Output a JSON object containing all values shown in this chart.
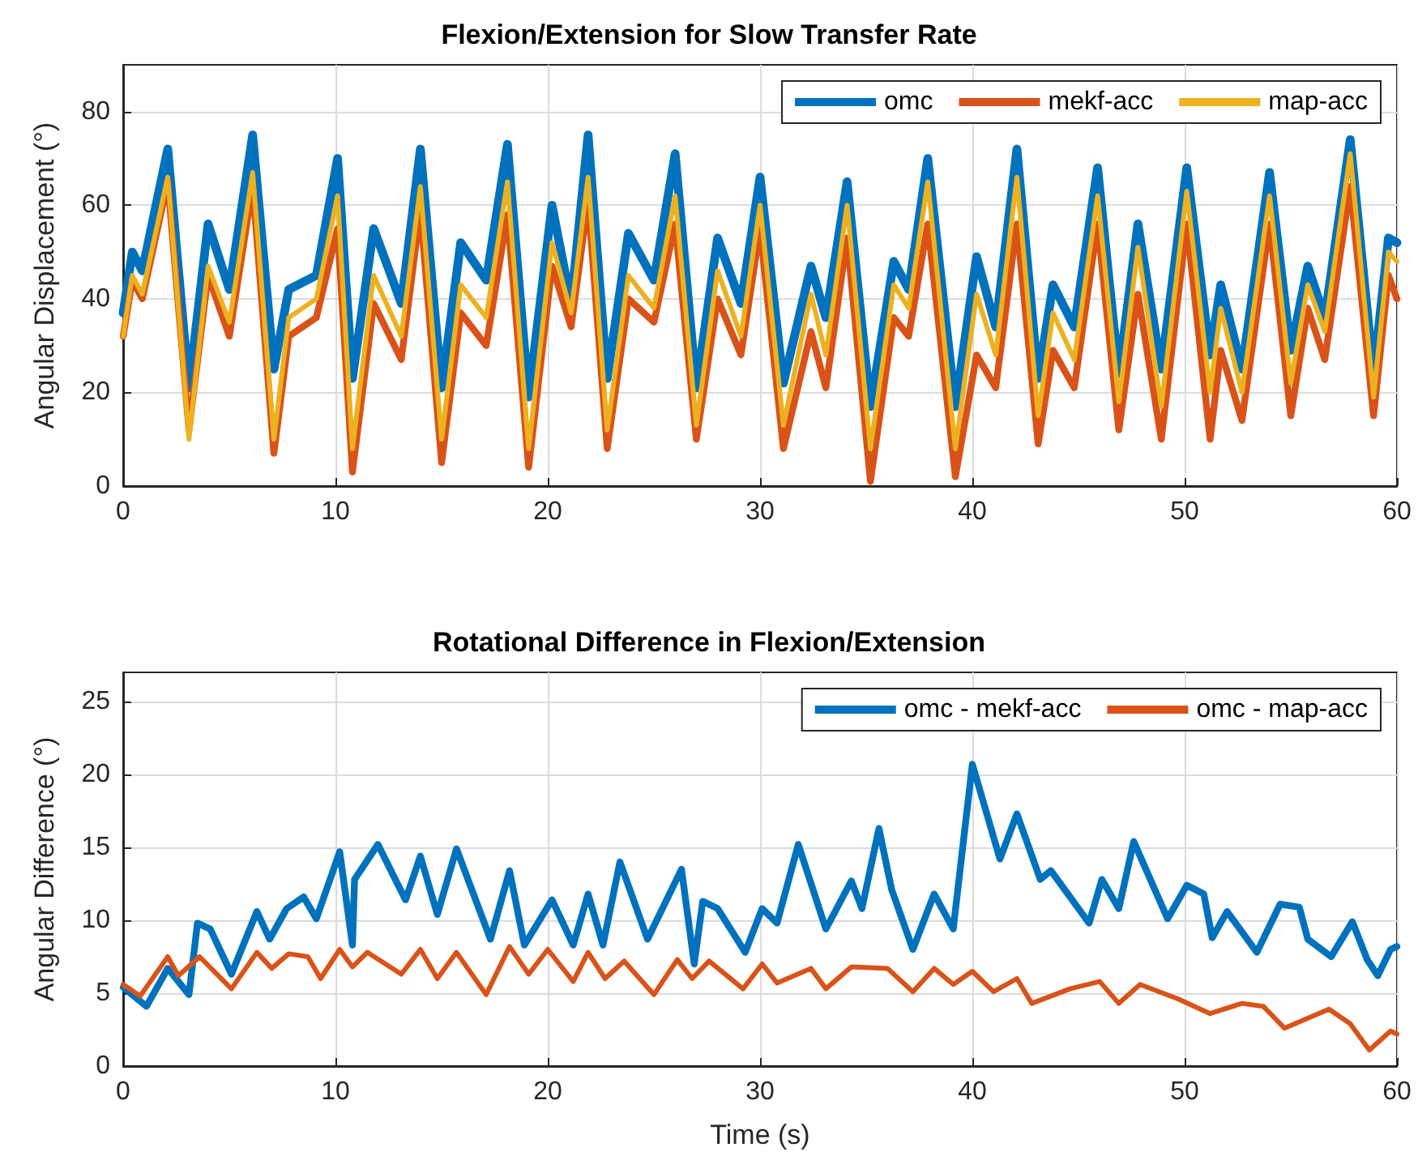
{
  "chart_data": [
    {
      "type": "line",
      "title": "Flexion/Extension for Slow Transfer Rate",
      "ylabel": "Angular Displacement (°)",
      "x": [
        0,
        0.43,
        0.9,
        2.1,
        3.1,
        4.0,
        5.0,
        6.1,
        7.1,
        7.8,
        9.1,
        10.1,
        10.8,
        11.8,
        13.1,
        14.0,
        15.0,
        15.9,
        17.1,
        18.1,
        19.1,
        20.2,
        21.1,
        21.9,
        22.8,
        23.8,
        25.0,
        26.0,
        27.0,
        28.0,
        29.1,
        30.0,
        31.1,
        32.4,
        33.1,
        34.1,
        35.2,
        36.3,
        37.0,
        37.9,
        39.2,
        40.2,
        41.1,
        42.1,
        43.1,
        43.8,
        44.8,
        45.9,
        46.9,
        47.8,
        48.9,
        50.1,
        51.2,
        51.7,
        52.7,
        54.0,
        55.0,
        55.8,
        56.6,
        57.8,
        58.9,
        59.6,
        60
      ],
      "series": [
        {
          "name": "omc",
          "color": "#0072bd",
          "values": [
            37,
            50,
            46,
            72,
            21,
            56,
            42,
            75,
            25,
            42,
            45,
            70,
            23,
            55,
            39,
            72,
            21,
            52,
            44,
            73,
            19,
            60,
            39,
            75,
            23,
            54,
            44,
            71,
            21,
            53,
            39,
            66,
            22,
            47,
            36,
            65,
            17,
            48,
            42,
            70,
            17,
            49,
            34,
            72,
            23,
            43,
            34,
            68,
            24,
            56,
            25,
            68,
            28,
            43,
            25,
            67,
            29,
            47,
            36,
            74,
            24,
            53,
            52
          ]
        },
        {
          "name": "mekf-acc",
          "color": "#d95319",
          "values": [
            32,
            44,
            40,
            65,
            12,
            45,
            32,
            64,
            7,
            32,
            36,
            55,
            3,
            39,
            27,
            59,
            5,
            37,
            30,
            58,
            4,
            47,
            34,
            61,
            8,
            40,
            35,
            56,
            10,
            40,
            28,
            55,
            8,
            33,
            21,
            53,
            1,
            36,
            32,
            56,
            2,
            28,
            21,
            56,
            9,
            29,
            21,
            56,
            12,
            41,
            10,
            56,
            10,
            29,
            14,
            56,
            15,
            38,
            27,
            64,
            15,
            45,
            40
          ]
        },
        {
          "name": "map-acc",
          "color": "#edb120",
          "values": [
            32,
            45,
            41,
            66,
            10,
            47,
            35,
            67,
            10,
            36,
            40,
            62,
            8,
            45,
            32,
            64,
            10,
            43,
            36,
            65,
            8,
            52,
            37,
            66,
            12,
            45,
            38,
            62,
            13,
            46,
            32,
            60,
            13,
            41,
            28,
            60,
            8,
            43,
            38,
            65,
            8,
            41,
            28,
            66,
            15,
            37,
            27,
            62,
            18,
            51,
            17,
            63,
            20,
            38,
            20,
            62,
            22,
            43,
            33,
            71,
            19,
            50,
            48
          ]
        }
      ],
      "xlim": [
        0,
        60
      ],
      "xticks": [
        0,
        10,
        20,
        30,
        40,
        50,
        60
      ],
      "ylim": [
        0,
        90
      ],
      "yticks": [
        0,
        20,
        40,
        60,
        80
      ],
      "grid": true,
      "legend": "top right",
      "marker": "none",
      "line_style": "solid"
    },
    {
      "type": "line",
      "title": "Rotational Difference in Flexion/Extension",
      "xlabel": "Time (s)",
      "ylabel": "Angular Difference (°)",
      "series": [
        {
          "name": "omc - mekf-acc",
          "color": "#0072bd",
          "x": [
            0,
            1.1,
            2.1,
            3.1,
            3.5,
            4.1,
            5.1,
            6.3,
            6.9,
            7.7,
            8.5,
            9.1,
            10.2,
            10.8,
            10.9,
            12.0,
            13.3,
            14.0,
            14.8,
            15.7,
            17.3,
            18.2,
            18.9,
            20.2,
            21.2,
            21.9,
            22.6,
            23.4,
            24.7,
            26.3,
            26.9,
            27.3,
            28.0,
            29.3,
            30.1,
            30.8,
            31.8,
            33.1,
            34.3,
            34.8,
            35.6,
            36.2,
            37.2,
            38.2,
            39.1,
            40.0,
            41.3,
            42.1,
            43.2,
            43.7,
            45.5,
            46.1,
            46.9,
            47.6,
            49.2,
            50.1,
            50.9,
            51.3,
            52.0,
            53.4,
            54.5,
            55.4,
            55.8,
            56.9,
            57.9,
            58.6,
            59.1,
            59.7,
            60
          ],
          "values": [
            5.4,
            4.1,
            6.7,
            4.9,
            9.8,
            9.4,
            6.3,
            10.6,
            8.7,
            10.8,
            11.6,
            10.1,
            14.7,
            8.3,
            12.8,
            15.2,
            11.4,
            14.4,
            10.4,
            14.9,
            8.7,
            13.4,
            8.3,
            11.4,
            8.3,
            11.8,
            8.3,
            14.0,
            8.7,
            13.5,
            7.0,
            11.3,
            10.8,
            7.8,
            10.8,
            9.8,
            15.2,
            9.4,
            12.7,
            10.8,
            16.3,
            12.1,
            8.0,
            11.8,
            9.4,
            20.7,
            14.2,
            17.3,
            12.8,
            13.4,
            9.8,
            12.8,
            10.8,
            15.4,
            10.1,
            12.4,
            11.8,
            8.8,
            10.6,
            7.8,
            11.1,
            10.9,
            8.7,
            7.5,
            9.9,
            7.3,
            6.2,
            8.0,
            8.2
          ]
        },
        {
          "name": "omc - map-acc",
          "color": "#d95319",
          "x": [
            0,
            0.8,
            2.1,
            2.6,
            3.6,
            5.1,
            6.3,
            7.0,
            7.8,
            8.7,
            9.3,
            10.2,
            10.8,
            11.5,
            13.1,
            14.0,
            14.8,
            15.7,
            17.1,
            18.2,
            19.1,
            20.0,
            21.2,
            21.9,
            22.7,
            23.6,
            25.0,
            26.1,
            26.8,
            27.6,
            29.2,
            30.1,
            30.8,
            32.4,
            33.1,
            34.3,
            36.0,
            37.2,
            38.2,
            39.1,
            40.0,
            41.0,
            42.1,
            42.8,
            44.6,
            46.0,
            46.9,
            47.9,
            49.7,
            51.2,
            52.7,
            53.7,
            54.7,
            56.8,
            57.8,
            58.7,
            59.7,
            60
          ],
          "values": [
            5.6,
            4.8,
            7.5,
            6.2,
            7.5,
            5.3,
            7.8,
            6.7,
            7.7,
            7.5,
            6.0,
            8.0,
            6.8,
            7.8,
            6.3,
            8.0,
            6.0,
            7.8,
            4.9,
            8.2,
            6.3,
            8.0,
            5.8,
            7.8,
            6.0,
            7.2,
            4.9,
            7.3,
            6.0,
            7.2,
            5.3,
            7.0,
            5.7,
            6.7,
            5.3,
            6.8,
            6.7,
            5.1,
            6.7,
            5.6,
            6.5,
            5.1,
            6.0,
            4.3,
            5.3,
            5.8,
            4.3,
            5.6,
            4.6,
            3.6,
            4.3,
            4.1,
            2.6,
            3.9,
            2.9,
            1.1,
            2.4,
            2.2
          ]
        }
      ],
      "xlim": [
        0,
        60
      ],
      "xticks": [
        0,
        10,
        20,
        30,
        40,
        50,
        60
      ],
      "ylim": [
        0,
        27
      ],
      "yticks": [
        0,
        5,
        10,
        15,
        20,
        25
      ],
      "grid": true,
      "legend": "top right",
      "marker": "none",
      "line_style": "solid"
    }
  ]
}
